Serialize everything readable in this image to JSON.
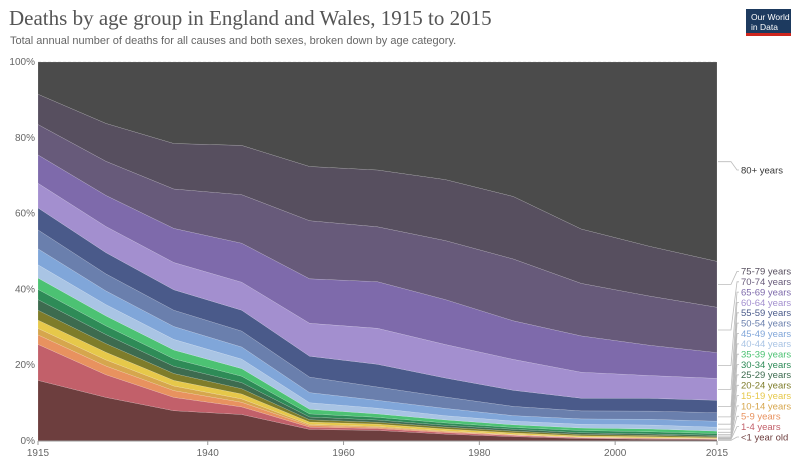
{
  "title": "Deaths by age group in England and Wales, 1915 to 2015",
  "subtitle": "Total annual number of deaths for all causes and both sexes, broken down by age category.",
  "logo": {
    "line1": "Our World",
    "line2": "in Data"
  },
  "chart_data": {
    "type": "area",
    "stacked": true,
    "relative": true,
    "x": [
      1915,
      1925,
      1935,
      1945,
      1955,
      1965,
      1975,
      1985,
      1995,
      2005,
      2015
    ],
    "xticks": [
      "1915",
      "1940",
      "1960",
      "1980",
      "2000",
      "2015"
    ],
    "yticks": [
      "0%",
      "20%",
      "40%",
      "60%",
      "80%",
      "100%"
    ],
    "ylim": [
      0,
      100
    ],
    "grid": true,
    "legend_position": "right",
    "series": [
      {
        "name": "<1 year old",
        "color": "#6d3e3e",
        "values": [
          16,
          11.5,
          8,
          7,
          3,
          2.8,
          1.8,
          1.2,
          0.7,
          0.5,
          0.4
        ]
      },
      {
        "name": "1-4 years",
        "color": "#c2606a",
        "values": [
          9.5,
          6,
          3.5,
          2,
          0.6,
          0.5,
          0.4,
          0.3,
          0.2,
          0.2,
          0.15
        ]
      },
      {
        "name": "5-9 years",
        "color": "#e8925f",
        "values": [
          2.5,
          2.3,
          1.8,
          1.2,
          0.4,
          0.3,
          0.25,
          0.15,
          0.1,
          0.1,
          0.08
        ]
      },
      {
        "name": "10-14 years",
        "color": "#d6a64d",
        "values": [
          1.7,
          1.6,
          1.2,
          0.9,
          0.3,
          0.25,
          0.2,
          0.15,
          0.1,
          0.1,
          0.08
        ]
      },
      {
        "name": "15-19 years",
        "color": "#e6c84a",
        "values": [
          2.2,
          2,
          1.5,
          1.3,
          0.6,
          0.6,
          0.5,
          0.4,
          0.3,
          0.3,
          0.2
        ]
      },
      {
        "name": "20-24 years",
        "color": "#7e7c2a",
        "values": [
          2.6,
          2.3,
          1.8,
          1.4,
          0.6,
          0.5,
          0.5,
          0.5,
          0.4,
          0.4,
          0.3
        ]
      },
      {
        "name": "25-29 years",
        "color": "#3d6b4f",
        "values": [
          2.8,
          2.4,
          1.9,
          1.6,
          0.7,
          0.6,
          0.5,
          0.5,
          0.5,
          0.4,
          0.4
        ]
      },
      {
        "name": "30-34 years",
        "color": "#2e8b57",
        "values": [
          2.7,
          2.3,
          2,
          1.7,
          0.8,
          0.7,
          0.6,
          0.5,
          0.6,
          0.6,
          0.5
        ]
      },
      {
        "name": "35-39 years",
        "color": "#4cc273",
        "values": [
          3,
          2.6,
          2.3,
          2,
          1.2,
          0.9,
          0.8,
          0.7,
          0.7,
          0.8,
          0.7
        ]
      },
      {
        "name": "40-44 years",
        "color": "#a9c4e4",
        "values": [
          3.5,
          3,
          2.8,
          2.5,
          1.7,
          1.5,
          1.1,
          1,
          1,
          1.1,
          1.1
        ]
      },
      {
        "name": "45-49 years",
        "color": "#80a6d9",
        "values": [
          4.2,
          3.6,
          3.4,
          3.2,
          2.6,
          2.1,
          1.9,
          1.5,
          1.5,
          1.6,
          1.7
        ]
      },
      {
        "name": "50-54 years",
        "color": "#6a7fad",
        "values": [
          5,
          4.5,
          4.3,
          4.2,
          4,
          3.5,
          3,
          2.5,
          2.2,
          2.3,
          2.4
        ]
      },
      {
        "name": "55-59 years",
        "color": "#4a5a8a",
        "values": [
          5.8,
          5.6,
          5.4,
          5.5,
          5.4,
          6,
          5,
          4.4,
          3.5,
          3.6,
          3.5
        ]
      },
      {
        "name": "60-64 years",
        "color": "#a38fcf",
        "values": [
          6.5,
          6.9,
          7.2,
          7.4,
          8.5,
          9.5,
          8.8,
          8.4,
          7.2,
          6.4,
          6.2
        ]
      },
      {
        "name": "65-69 years",
        "color": "#7e6aab",
        "values": [
          7.5,
          8.2,
          9,
          10.3,
          11.5,
          12.3,
          11.8,
          10.5,
          10,
          8.5,
          7.3
        ]
      },
      {
        "name": "70-74 years",
        "color": "#675a7a",
        "values": [
          8,
          9,
          10.4,
          12.8,
          15,
          14.5,
          15.5,
          16.8,
          14.5,
          13.8,
          12.8
        ]
      },
      {
        "name": "75-79 years",
        "color": "#574f5f",
        "values": [
          8,
          10,
          12,
          13,
          14,
          15,
          16,
          17,
          15,
          14,
          13
        ]
      },
      {
        "name": "80+ years",
        "color": "#4b4b4b",
        "values": [
          8.5,
          16.2,
          21.5,
          22,
          27,
          28.5,
          30.9,
          36.6,
          46.1,
          51.7,
          56.4
        ]
      }
    ]
  }
}
